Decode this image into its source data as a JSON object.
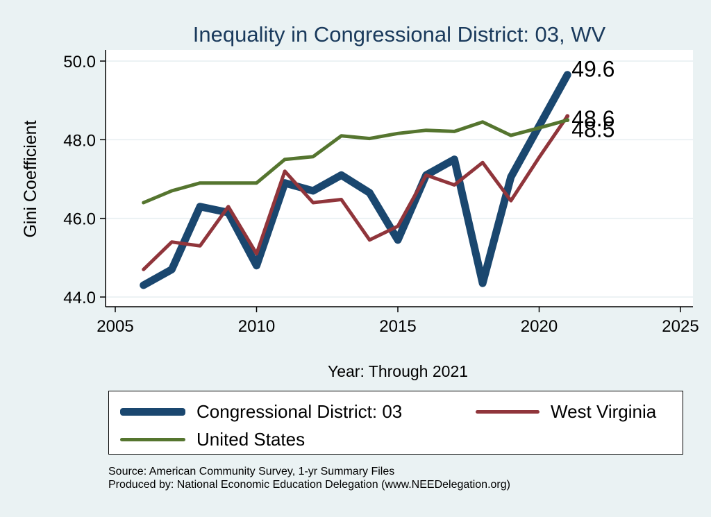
{
  "chart_data": {
    "type": "line",
    "title": "Inequality in Congressional District:  03, WV",
    "xlabel": "Year: Through 2021",
    "ylabel": "Gini Coefficient",
    "xlim": [
      2005,
      2025
    ],
    "ylim": [
      44.0,
      50.0
    ],
    "xticks": [
      "2005",
      "2010",
      "2015",
      "2020",
      "2025"
    ],
    "yticks": [
      "44.0",
      "46.0",
      "48.0",
      "50.0"
    ],
    "grid": true,
    "legend_position": "bottom",
    "x": [
      2006,
      2007,
      2008,
      2009,
      2010,
      2011,
      2012,
      2013,
      2014,
      2015,
      2016,
      2017,
      2018,
      2019,
      2020,
      2021
    ],
    "series": [
      {
        "name": "Congressional District:  03",
        "color": "#1a476f",
        "values": [
          44.3,
          44.7,
          46.3,
          46.15,
          44.8,
          46.9,
          46.7,
          47.1,
          46.65,
          45.45,
          47.1,
          47.5,
          44.35,
          47.05,
          48.35,
          49.65
        ],
        "end_label": "49.6"
      },
      {
        "name": "West Virginia",
        "color": "#90353b",
        "values": [
          44.7,
          45.4,
          45.3,
          46.3,
          45.1,
          47.2,
          46.4,
          46.48,
          45.45,
          45.8,
          47.1,
          46.85,
          47.42,
          46.45,
          47.55,
          48.6
        ],
        "end_label": "48.6"
      },
      {
        "name": "United States",
        "color": "#55752f",
        "values": [
          46.4,
          46.7,
          46.9,
          46.9,
          46.9,
          47.5,
          47.57,
          48.1,
          48.03,
          48.16,
          48.24,
          48.21,
          48.45,
          48.11,
          48.3,
          48.5
        ],
        "end_label": "48.5"
      }
    ]
  },
  "legend": {
    "items": [
      {
        "label": "Congressional District:  03",
        "color": "#1a476f"
      },
      {
        "label": "West Virginia",
        "color": "#90353b"
      },
      {
        "label": "United States",
        "color": "#55752f"
      }
    ]
  },
  "source": {
    "line1": "Source: American Community Survey, 1-yr Summary Files",
    "line2": "Produced by: National Economic Education Delegation (www.NEEDelegation.org)"
  }
}
